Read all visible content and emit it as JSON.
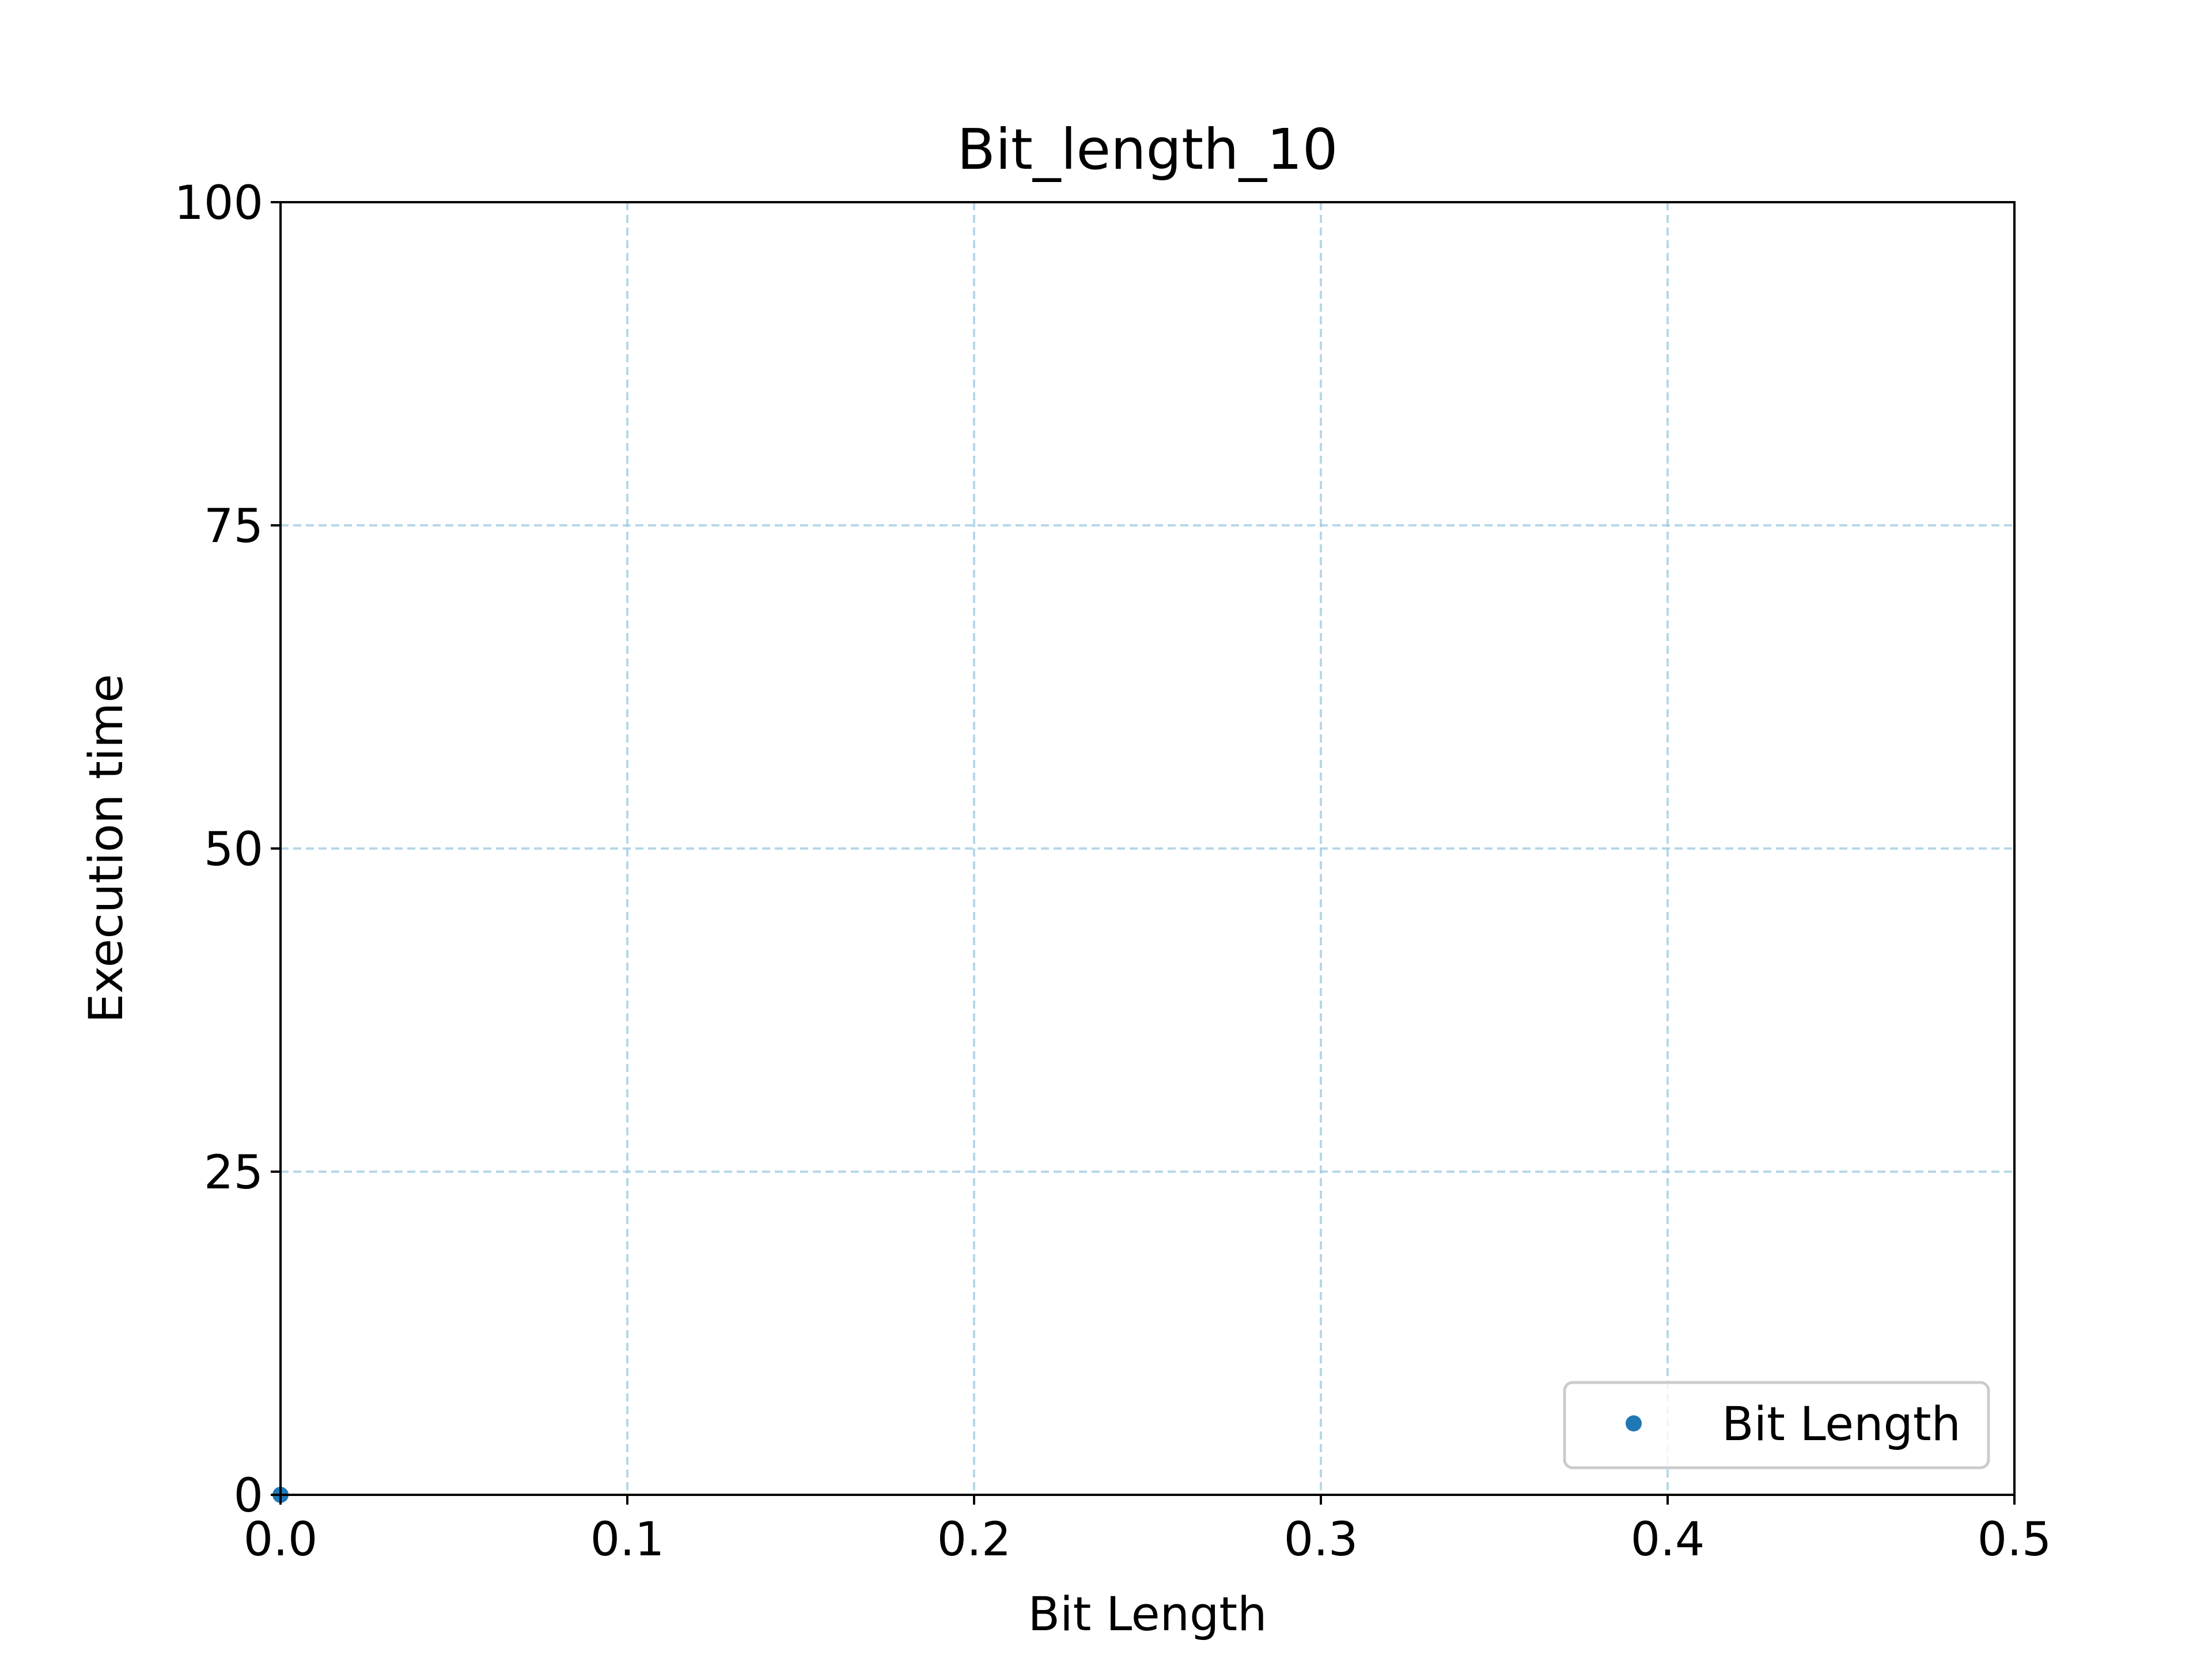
{
  "chart_data": {
    "type": "scatter",
    "title": "Bit_length_10",
    "xlabel": "Bit Length",
    "ylabel": "Execution time",
    "xlim": [
      0.0,
      0.5
    ],
    "ylim": [
      0,
      100
    ],
    "x_ticks": [
      "0.0",
      "0.1",
      "0.2",
      "0.3",
      "0.4",
      "0.5"
    ],
    "x_tick_values": [
      0.0,
      0.1,
      0.2,
      0.3,
      0.4,
      0.5
    ],
    "y_ticks": [
      "0",
      "25",
      "50",
      "75",
      "100"
    ],
    "y_tick_values": [
      0,
      25,
      50,
      75,
      100
    ],
    "grid": true,
    "grid_style": "dashed",
    "legend_position": "lower-right",
    "series": [
      {
        "name": "Bit Length",
        "color": "#1f77b4",
        "marker": "point",
        "points": [
          {
            "x": 0.0,
            "y": 0.0
          }
        ]
      }
    ]
  }
}
